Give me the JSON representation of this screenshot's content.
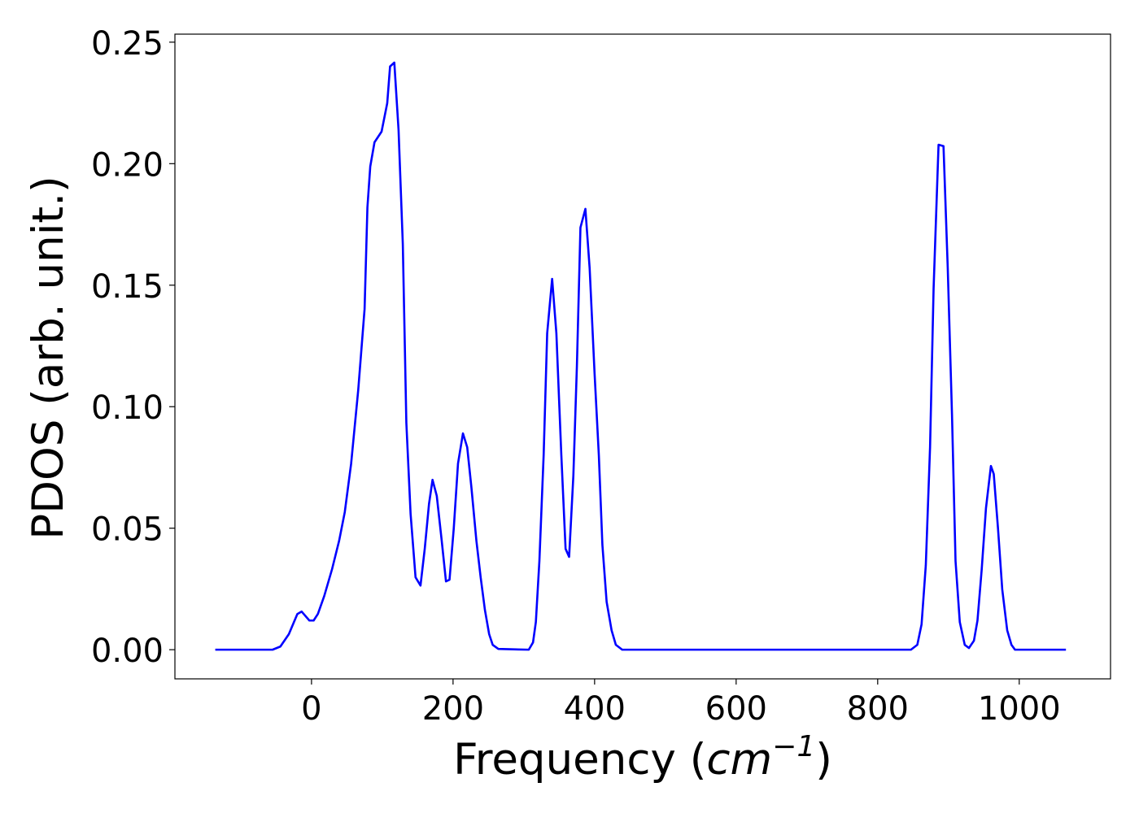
{
  "chart_data": {
    "type": "line",
    "x_label": {
      "prefix": "Frequency (",
      "unit": "cm",
      "exponent": "−1",
      "suffix": ")"
    },
    "y_label": "PDOS (arb. unit.)",
    "x": [
      -136,
      -55,
      -44,
      -32,
      -20,
      -14,
      -3,
      3,
      9,
      18,
      29,
      39,
      47,
      56,
      66,
      75,
      79,
      83,
      89,
      99,
      107,
      111,
      117,
      123,
      129,
      134,
      140,
      147,
      154,
      160,
      166,
      171,
      177,
      184,
      190,
      195,
      201,
      207,
      214,
      220,
      226,
      233,
      239,
      245,
      251,
      256,
      264,
      307,
      313,
      317,
      322,
      328,
      333,
      340,
      346,
      353,
      359,
      364,
      370,
      375,
      380,
      387,
      393,
      400,
      406,
      411,
      417,
      424,
      430,
      439,
      847,
      856,
      862,
      868,
      874,
      879,
      886,
      893,
      899,
      905,
      910,
      916,
      923,
      929,
      936,
      941,
      947,
      953,
      960,
      964,
      970,
      976,
      983,
      989,
      994,
      1066
    ],
    "series": [
      {
        "name": "PDOS",
        "color": "#0000ff",
        "values": [
          0,
          0,
          0.0013,
          0.0064,
          0.0147,
          0.0157,
          0.012,
          0.012,
          0.0147,
          0.0221,
          0.0331,
          0.0448,
          0.0566,
          0.0766,
          0.1068,
          0.1402,
          0.182,
          0.1988,
          0.2088,
          0.2132,
          0.2249,
          0.24,
          0.2416,
          0.2139,
          0.167,
          0.0934,
          0.0559,
          0.0298,
          0.0264,
          0.0415,
          0.0599,
          0.0699,
          0.0633,
          0.0448,
          0.0281,
          0.0288,
          0.0499,
          0.0766,
          0.089,
          0.0833,
          0.0666,
          0.0448,
          0.0298,
          0.0164,
          0.0064,
          0.002,
          0.0003,
          0,
          0.003,
          0.0114,
          0.0365,
          0.08,
          0.1302,
          0.1526,
          0.1302,
          0.08,
          0.0415,
          0.0382,
          0.0716,
          0.1168,
          0.1737,
          0.1814,
          0.157,
          0.1135,
          0.08,
          0.0432,
          0.0197,
          0.008,
          0.002,
          0,
          0,
          0.002,
          0.0104,
          0.0348,
          0.0833,
          0.1486,
          0.2078,
          0.2072,
          0.157,
          0.0967,
          0.0365,
          0.0114,
          0.002,
          0.0007,
          0.0037,
          0.012,
          0.0331,
          0.0582,
          0.0756,
          0.0723,
          0.0499,
          0.0248,
          0.008,
          0.002,
          0,
          0
        ]
      }
    ],
    "xlim": [
      -193,
      1129
    ],
    "ylim": [
      -0.012,
      0.2533
    ],
    "xticks": [
      0,
      200,
      400,
      600,
      800,
      1000
    ],
    "yticks": [
      {
        "value": 0,
        "label": "0.00"
      },
      0.05,
      {
        "value": 0.1,
        "label": "0.10"
      },
      0.15,
      {
        "value": 0.2,
        "label": "0.20"
      },
      0.25
    ]
  }
}
